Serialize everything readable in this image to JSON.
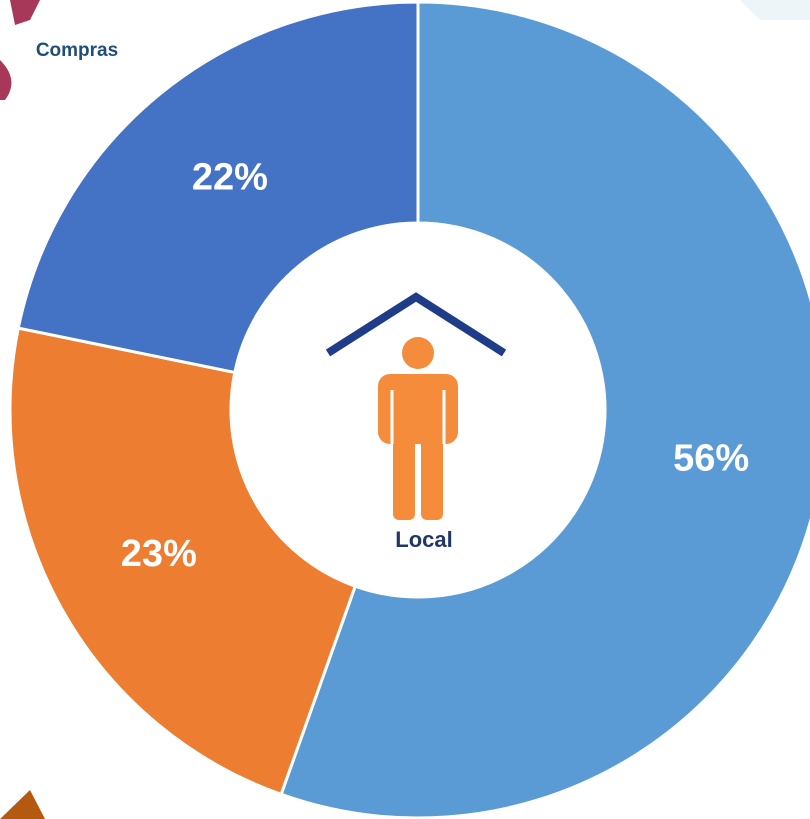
{
  "chart_data": {
    "type": "donut",
    "header": "Compras",
    "center_label": "Local",
    "categories": [
      null,
      null,
      null
    ],
    "values": [
      56,
      23,
      22
    ],
    "value_labels": [
      "56%",
      "23%",
      "22%"
    ],
    "colors": [
      "#5b9bd5",
      "#ed7d31",
      "#4472c4"
    ]
  }
}
